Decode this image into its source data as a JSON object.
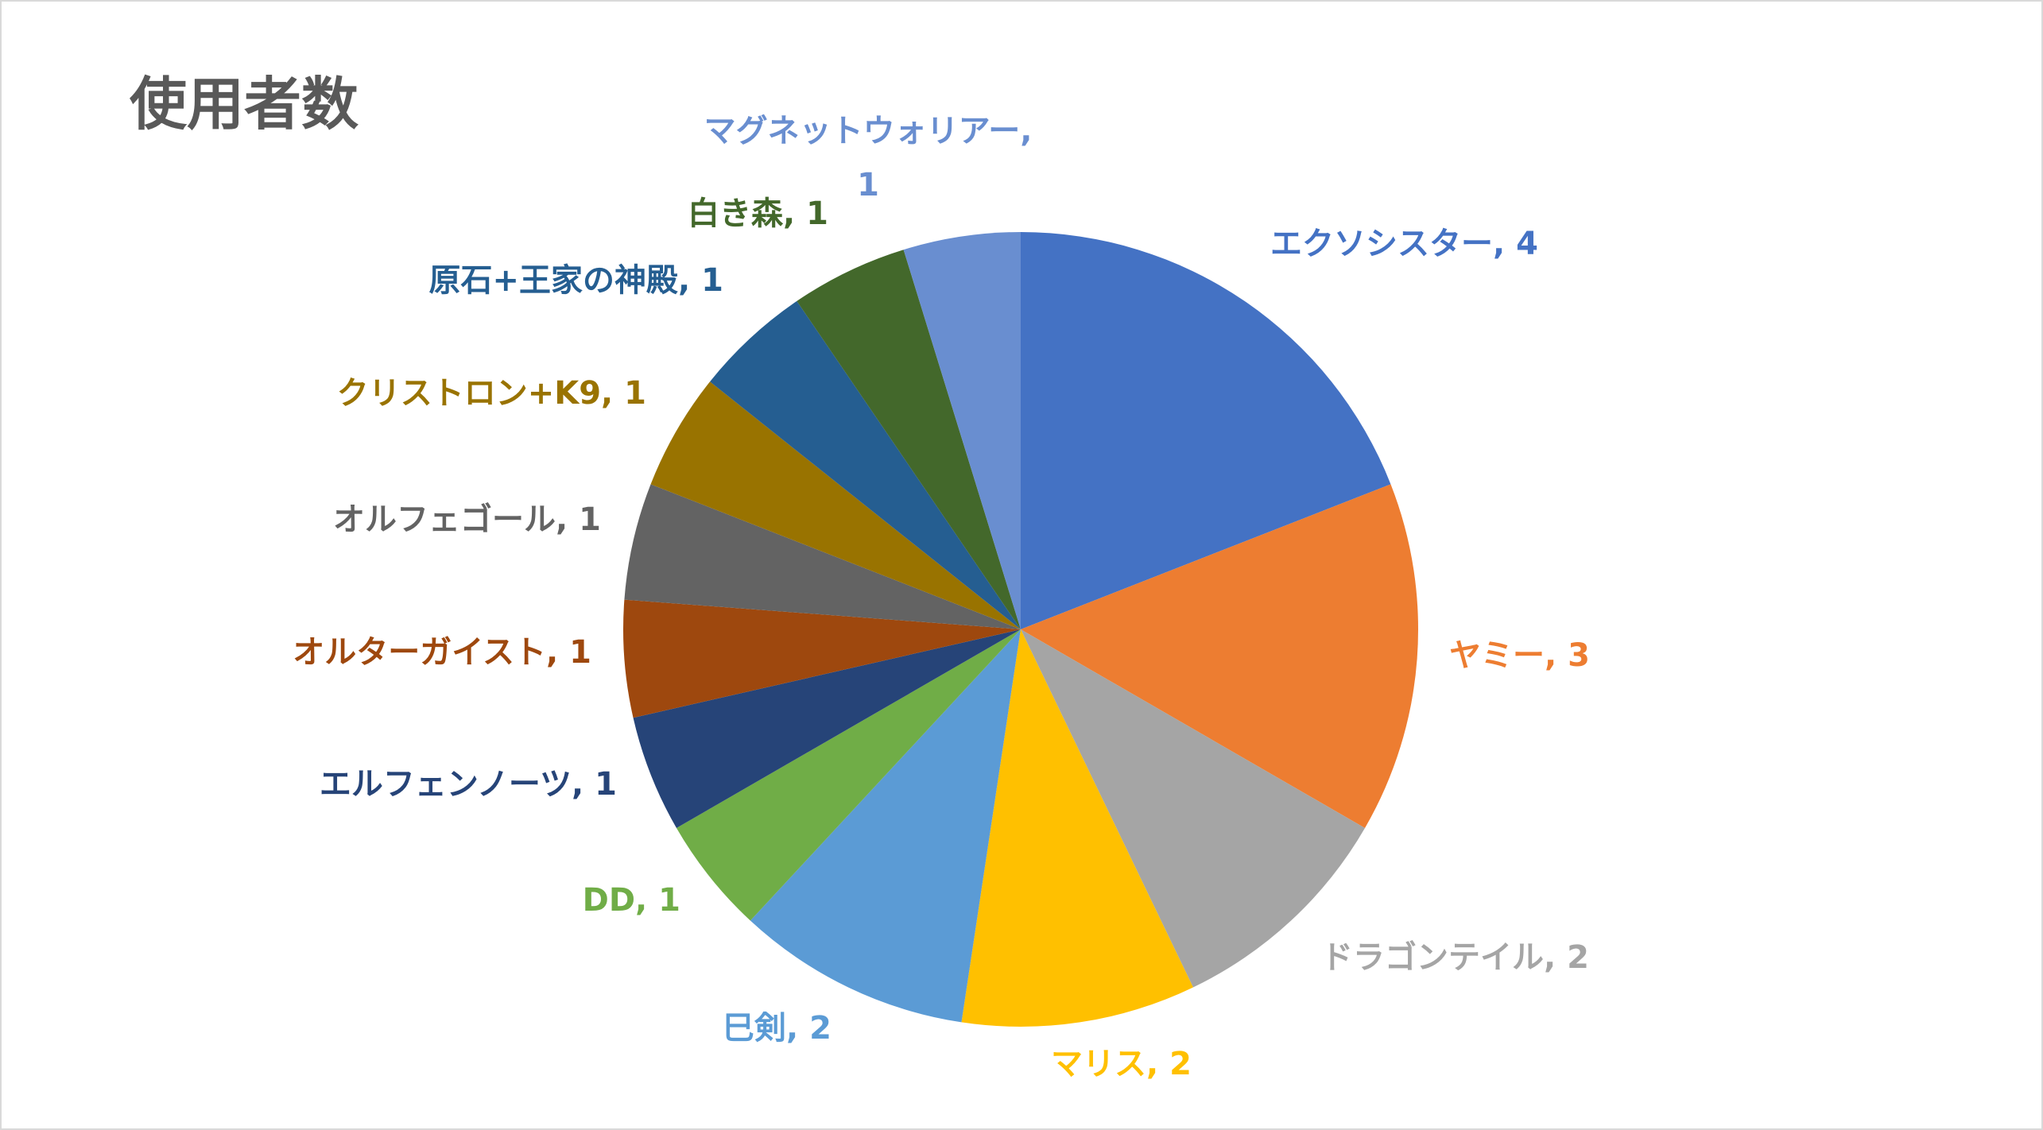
{
  "chart_data": {
    "type": "pie",
    "title": "使用者数",
    "start_angle_deg": 0,
    "direction": "clockwise",
    "slices": [
      {
        "label": "エクソシスター",
        "value": 4,
        "display": "エクソシスター, 4",
        "color": "#4472C4"
      },
      {
        "label": "ヤミー",
        "value": 3,
        "display": "ヤミー, 3",
        "color": "#ED7D31"
      },
      {
        "label": "ドラゴンテイル",
        "value": 2,
        "display": "ドラゴンテイル, 2",
        "color": "#A5A5A5"
      },
      {
        "label": "マリス",
        "value": 2,
        "display": "マリス, 2",
        "color": "#FFC000"
      },
      {
        "label": "巳剣",
        "value": 2,
        "display": "巳剣, 2",
        "color": "#5B9BD5"
      },
      {
        "label": "DD",
        "value": 1,
        "display": "DD, 1",
        "color": "#70AD47"
      },
      {
        "label": "エルフェンノーツ",
        "value": 1,
        "display": "エルフェンノーツ, 1",
        "color": "#264478"
      },
      {
        "label": "オルターガイスト",
        "value": 1,
        "display": "オルターガイスト, 1",
        "color": "#9E480E"
      },
      {
        "label": "オルフェゴール",
        "value": 1,
        "display": "オルフェゴール, 1",
        "color": "#636363"
      },
      {
        "label": "クリストロン+K9",
        "value": 1,
        "display": "クリストロン+K9, 1",
        "color": "#997300"
      },
      {
        "label": "原石+王家の神殿",
        "value": 1,
        "display": "原石+王家の神殿, 1",
        "color": "#255E91"
      },
      {
        "label": "白き森",
        "value": 1,
        "display": "白き森, 1",
        "color": "#43682B"
      },
      {
        "label": "マグネットウォリアー",
        "value": 1,
        "display": "マグネットウォリアー, 1",
        "display_lines": [
          "マグネットウォリアー,",
          "1"
        ],
        "color": "#698ED0"
      }
    ]
  }
}
